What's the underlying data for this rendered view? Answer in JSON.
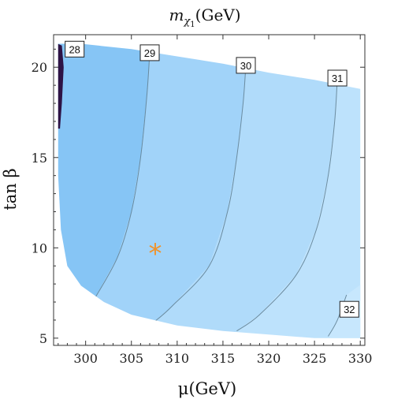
{
  "chart_data": {
    "type": "contour",
    "title": "m_χ1(GeV)",
    "title_parts": {
      "main": "m",
      "sub1": "χ",
      "sub2": "1",
      "rest": "(GeV)"
    },
    "xlabel": "μ(GeV)",
    "ylabel": "tan β",
    "xlim": [
      296.5,
      330.5
    ],
    "ylim": [
      4.6,
      21.8
    ],
    "xticks": [
      "300",
      "305",
      "310",
      "315",
      "320",
      "325",
      "330"
    ],
    "yticks": [
      "5",
      "10",
      "15",
      "20"
    ],
    "region_boundary": [
      [
        297.0,
        21.3
      ],
      [
        299.5,
        21.3
      ],
      [
        305,
        21.0
      ],
      [
        310,
        20.6
      ],
      [
        315,
        20.2
      ],
      [
        320,
        19.7
      ],
      [
        325,
        19.3
      ],
      [
        330,
        18.8
      ],
      [
        330,
        5.0
      ],
      [
        325,
        5.0
      ],
      [
        320,
        5.2
      ],
      [
        315,
        5.4
      ],
      [
        310,
        5.7
      ],
      [
        305,
        6.3
      ],
      [
        302,
        7.0
      ],
      [
        299.5,
        7.9
      ],
      [
        298.0,
        9.0
      ],
      [
        297.3,
        11.0
      ],
      [
        297.0,
        14.0
      ]
    ],
    "contours": [
      {
        "level": 28,
        "label": "28",
        "color": "#2e1345",
        "points": [
          [
            297.4,
            21.2
          ],
          [
            297.6,
            20.0
          ],
          [
            297.4,
            18.0
          ],
          [
            297.2,
            16.6
          ]
        ],
        "label_at": [
          298.8,
          21.0
        ]
      },
      {
        "level": 29,
        "label": "29",
        "color": "#5d7c8f",
        "points": [
          [
            307.0,
            20.8
          ],
          [
            306.7,
            18.5
          ],
          [
            306.0,
            15.0
          ],
          [
            305.0,
            12.0
          ],
          [
            303.5,
            9.5
          ],
          [
            301.0,
            7.2
          ]
        ],
        "label_at": [
          307.0,
          20.8
        ]
      },
      {
        "level": 30,
        "label": "30",
        "color": "#5d7c8f",
        "points": [
          [
            317.5,
            20.1
          ],
          [
            317.2,
            18.0
          ],
          [
            316.5,
            15.0
          ],
          [
            315.5,
            12.0
          ],
          [
            313.5,
            9.0
          ],
          [
            309.5,
            6.8
          ],
          [
            307.5,
            5.9
          ]
        ],
        "label_at": [
          317.5,
          20.1
        ]
      },
      {
        "level": 31,
        "label": "31",
        "color": "#5d7c8f",
        "points": [
          [
            327.5,
            19.4
          ],
          [
            327.2,
            17.0
          ],
          [
            326.5,
            14.0
          ],
          [
            325.2,
            11.0
          ],
          [
            323.0,
            8.5
          ],
          [
            319.0,
            6.3
          ],
          [
            316.5,
            5.4
          ]
        ],
        "label_at": [
          327.5,
          19.4
        ]
      },
      {
        "level": 32,
        "label": "32",
        "color": "#5d7c8f",
        "points": [
          [
            328.5,
            7.4
          ],
          [
            327.5,
            6.0
          ],
          [
            326.5,
            5.1
          ]
        ],
        "label_at": [
          328.8,
          6.6
        ]
      }
    ],
    "fill_bands": [
      {
        "from": 28,
        "to": 29,
        "color": "#86c5f5"
      },
      {
        "from": 29,
        "to": 30,
        "color": "#a1d3f9"
      },
      {
        "from": 30,
        "to": 31,
        "color": "#b0dbfa"
      },
      {
        "from": 31,
        "to": 32,
        "color": "#bde2fc"
      },
      {
        "from": 32,
        "to": 33,
        "color": "#c7e7fd"
      }
    ],
    "marker": {
      "x": 307.6,
      "y": 9.8,
      "symbol": "*",
      "color": "#f0932a"
    },
    "grid": false,
    "frame_color": "#333333"
  }
}
